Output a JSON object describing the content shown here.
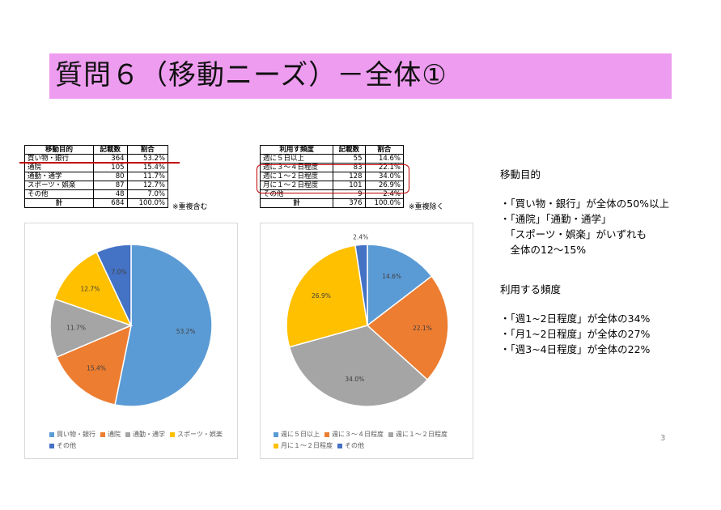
{
  "title": "質問６（移動ニーズ）－全体①",
  "table1": {
    "headers": [
      "移動目的",
      "記載数",
      "割合"
    ],
    "rows": [
      [
        "買い物・銀行",
        "364",
        "53.2%"
      ],
      [
        "通院",
        "105",
        "15.4%"
      ],
      [
        "通勤・通学",
        "80",
        "11.7%"
      ],
      [
        "スポーツ・娯楽",
        "87",
        "12.7%"
      ],
      [
        "その他",
        "48",
        "7.0%"
      ]
    ],
    "total": [
      "計",
      "684",
      "100.0%"
    ],
    "note": "※重複含む"
  },
  "table2": {
    "headers": [
      "利用す頻度",
      "記載数",
      "割合"
    ],
    "rows": [
      [
        "週に５日以上",
        "55",
        "14.6%"
      ],
      [
        "週に３～４日程度",
        "83",
        "22.1%"
      ],
      [
        "週に１～２日程度",
        "128",
        "34.0%"
      ],
      [
        "月に１～２日程度",
        "101",
        "26.9%"
      ],
      [
        "その他",
        "9",
        "2.4%"
      ]
    ],
    "total": [
      "計",
      "376",
      "100.0%"
    ],
    "note": "※重複除く"
  },
  "chart_data": [
    {
      "type": "pie",
      "categories": [
        "買い物・銀行",
        "通院",
        "通勤・通学",
        "スポーツ・娯楽",
        "その他"
      ],
      "values": [
        53.2,
        15.4,
        11.7,
        12.7,
        7.0
      ],
      "labels": [
        "53.2%",
        "15.4%",
        "11.7%",
        "12.7%",
        "7.0%"
      ],
      "colors": [
        "#5b9bd5",
        "#ed7d31",
        "#a5a5a5",
        "#ffc000",
        "#4472c4"
      ],
      "legend": "bottom"
    },
    {
      "type": "pie",
      "categories": [
        "週に５日以上",
        "週に３～４日程度",
        "週に１～２日程度",
        "月に１～２日程度",
        "その他"
      ],
      "values": [
        14.6,
        22.1,
        34.0,
        26.9,
        2.4
      ],
      "labels": [
        "14.6%",
        "22.1%",
        "34.0%",
        "26.9%",
        "2.4%"
      ],
      "colors": [
        "#5b9bd5",
        "#ed7d31",
        "#a5a5a5",
        "#ffc000",
        "#4472c4"
      ],
      "legend": "bottom"
    }
  ],
  "side": {
    "h1": "移動目的",
    "l1": "・「買い物・銀行」が全体の50%以上",
    "l2": "・「通院」「通勤・通学」",
    "l3": "　「スポーツ・娯楽」がいずれも",
    "l4": "　全体の12～15%",
    "h2": "利用する頻度",
    "l5": "・「週1~2日程度」が全体の34%",
    "l6": "・「月1~2日程度」が全体の27%",
    "l7": "・「週3~4日程度」が全体の22%"
  },
  "page_number": "3"
}
